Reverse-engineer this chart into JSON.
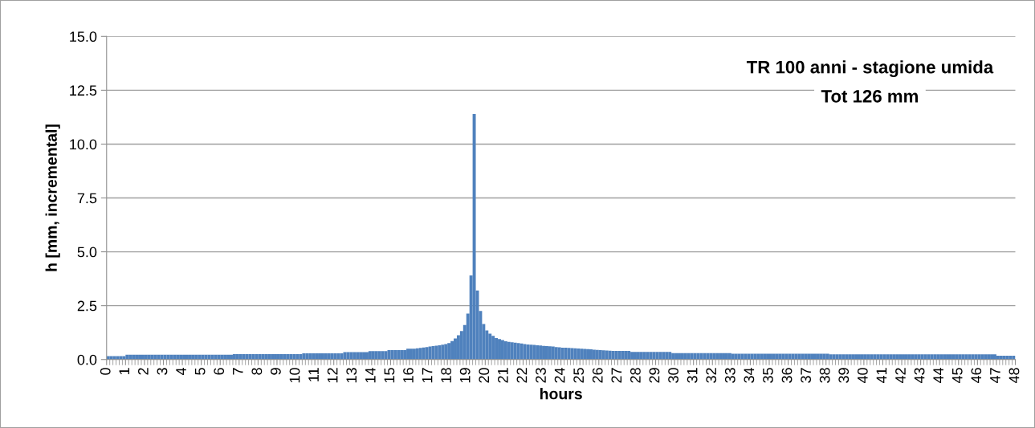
{
  "chart_data": {
    "type": "histogram",
    "title": "TR 100 anni - stagione umida",
    "subtitle": "Tot 126 mm",
    "xlabel": "hours",
    "ylabel": "h [mm, incremental]",
    "color": "#4f81bd",
    "grid": "y",
    "bins": [
      0,
      0.1667,
      0.3333,
      0.5,
      0.6667,
      0.8333,
      1,
      1.1667,
      1.3333,
      1.5,
      1.6667,
      1.8333,
      2,
      2.1667,
      2.3333,
      2.5,
      2.6667,
      2.8333,
      3,
      3.1667,
      3.3333,
      3.5,
      3.6667,
      3.8333,
      4,
      4.1667,
      4.3333,
      4.5,
      4.6667,
      4.8333,
      5,
      5.1667,
      5.3333,
      5.5,
      5.6667,
      5.8333,
      6,
      6.1667,
      6.3333,
      6.5,
      6.6667,
      6.8333,
      7,
      7.1667,
      7.3333,
      7.5,
      7.6667,
      7.8333,
      8,
      8.1667,
      8.3333,
      8.5,
      8.6667,
      8.8333,
      9,
      9.1667,
      9.3333,
      9.5,
      9.6667,
      9.8333,
      10,
      10.1667,
      10.3333,
      10.5,
      10.6667,
      10.8333,
      11,
      11.1667,
      11.3333,
      11.5,
      11.6667,
      11.8333,
      12,
      12.1667,
      12.3333,
      12.5,
      12.6667,
      12.8333,
      13,
      13.1667,
      13.3333,
      13.5,
      13.6667,
      13.8333,
      14,
      14.1667,
      14.3333,
      14.5,
      14.6667,
      14.8333,
      15,
      15.1667,
      15.3333,
      15.5,
      15.6667,
      15.8333,
      16,
      16.1667,
      16.3333,
      16.5,
      16.6667,
      16.8333,
      17,
      17.1667,
      17.3333,
      17.5,
      17.6667,
      17.8333,
      18,
      18.1667,
      18.3333,
      18.5,
      18.6667,
      18.8333,
      19,
      19.1667,
      19.3333,
      19.5,
      19.6667,
      19.8333,
      20,
      20.1667,
      20.3333,
      20.5,
      20.6667,
      20.8333,
      21,
      21.1667,
      21.3333,
      21.5,
      21.6667,
      21.8333,
      22,
      22.1667,
      22.3333,
      22.5,
      22.6667,
      22.8333,
      23,
      23.1667,
      23.3333,
      23.5,
      23.6667,
      23.8333,
      24,
      24.1667,
      24.3333,
      24.5,
      24.6667,
      24.8333,
      25,
      25.1667,
      25.3333,
      25.5,
      25.6667,
      25.8333,
      26,
      26.1667,
      26.3333,
      26.5,
      26.6667,
      26.8333,
      27,
      27.1667,
      27.3333,
      27.5,
      27.6667,
      27.8333,
      28,
      28.1667,
      28.3333,
      28.5,
      28.6667,
      28.8333,
      29,
      29.1667,
      29.3333,
      29.5,
      29.6667,
      29.8333,
      30,
      30.1667,
      30.3333,
      30.5,
      30.6667,
      30.8333,
      31,
      31.1667,
      31.3333,
      31.5,
      31.6667,
      31.8333,
      32,
      32.1667,
      32.3333,
      32.5,
      32.6667,
      32.8333,
      33,
      33.1667,
      33.3333,
      33.5,
      33.6667,
      33.8333,
      34,
      34.1667,
      34.3333,
      34.5,
      34.6667,
      34.8333,
      35,
      35.1667,
      35.3333,
      35.5,
      35.6667,
      35.8333,
      36,
      36.1667,
      36.3333,
      36.5,
      36.6667,
      36.8333,
      37,
      37.1667,
      37.3333,
      37.5,
      37.6667,
      37.8333,
      38,
      38.1667,
      38.3333,
      38.5,
      38.6667,
      38.8333,
      39,
      39.1667,
      39.3333,
      39.5,
      39.6667,
      39.8333,
      40,
      40.1667,
      40.3333,
      40.5,
      40.6667,
      40.8333,
      41,
      41.1667,
      41.3333,
      41.5,
      41.6667,
      41.8333,
      42,
      42.1667,
      42.3333,
      42.5,
      42.6667,
      42.8333,
      43,
      43.1667,
      43.3333,
      43.5,
      43.6667,
      43.8333,
      44,
      44.1667,
      44.3333,
      44.5,
      44.6667,
      44.8333,
      45,
      45.1667,
      45.3333,
      45.5,
      45.6667,
      45.8333,
      46,
      46.1667,
      46.3333,
      46.5,
      46.6667,
      46.8333,
      47,
      47.1667,
      47.3333,
      47.5,
      47.6667,
      47.8333,
      48
    ],
    "values": [
      0.16,
      0.16,
      0.16,
      0.16,
      0.16,
      0.16,
      0.22,
      0.22,
      0.22,
      0.22,
      0.22,
      0.22,
      0.22,
      0.22,
      0.22,
      0.22,
      0.22,
      0.22,
      0.22,
      0.22,
      0.22,
      0.22,
      0.22,
      0.22,
      0.22,
      0.22,
      0.22,
      0.22,
      0.22,
      0.22,
      0.22,
      0.22,
      0.22,
      0.22,
      0.22,
      0.22,
      0.22,
      0.22,
      0.22,
      0.22,
      0.25,
      0.25,
      0.25,
      0.25,
      0.25,
      0.25,
      0.25,
      0.25,
      0.25,
      0.25,
      0.25,
      0.25,
      0.25,
      0.25,
      0.25,
      0.25,
      0.25,
      0.25,
      0.25,
      0.25,
      0.25,
      0.25,
      0.29,
      0.29,
      0.29,
      0.29,
      0.29,
      0.29,
      0.29,
      0.29,
      0.29,
      0.29,
      0.29,
      0.29,
      0.29,
      0.34,
      0.34,
      0.34,
      0.34,
      0.34,
      0.34,
      0.34,
      0.34,
      0.39,
      0.39,
      0.39,
      0.39,
      0.39,
      0.39,
      0.44,
      0.44,
      0.44,
      0.44,
      0.44,
      0.44,
      0.5,
      0.5,
      0.5,
      0.52,
      0.54,
      0.56,
      0.58,
      0.6,
      0.62,
      0.64,
      0.66,
      0.69,
      0.72,
      0.76,
      0.86,
      0.98,
      1.13,
      1.32,
      1.6,
      2.13,
      3.9,
      11.4,
      3.2,
      2.25,
      1.65,
      1.35,
      1.2,
      1.1,
      1.0,
      0.95,
      0.9,
      0.85,
      0.82,
      0.8,
      0.78,
      0.76,
      0.74,
      0.72,
      0.7,
      0.69,
      0.68,
      0.66,
      0.65,
      0.63,
      0.62,
      0.61,
      0.6,
      0.58,
      0.57,
      0.55,
      0.55,
      0.54,
      0.53,
      0.52,
      0.51,
      0.5,
      0.49,
      0.48,
      0.47,
      0.46,
      0.45,
      0.44,
      0.43,
      0.42,
      0.41,
      0.4,
      0.4,
      0.4,
      0.4,
      0.4,
      0.4,
      0.35,
      0.35,
      0.35,
      0.35,
      0.35,
      0.35,
      0.35,
      0.35,
      0.35,
      0.35,
      0.35,
      0.35,
      0.35,
      0.3,
      0.3,
      0.3,
      0.3,
      0.3,
      0.3,
      0.3,
      0.3,
      0.3,
      0.3,
      0.3,
      0.3,
      0.3,
      0.3,
      0.3,
      0.3,
      0.3,
      0.3,
      0.3,
      0.27,
      0.27,
      0.27,
      0.27,
      0.27,
      0.27,
      0.27,
      0.27,
      0.27,
      0.27,
      0.27,
      0.27,
      0.27,
      0.27,
      0.27,
      0.27,
      0.27,
      0.27,
      0.27,
      0.27,
      0.27,
      0.27,
      0.27,
      0.27,
      0.27,
      0.27,
      0.27,
      0.27,
      0.27,
      0.27,
      0.27,
      0.24,
      0.24,
      0.24,
      0.24,
      0.24,
      0.24,
      0.24,
      0.24,
      0.24,
      0.24,
      0.24,
      0.24,
      0.24,
      0.24,
      0.24,
      0.24,
      0.24,
      0.24,
      0.24,
      0.24,
      0.24,
      0.24,
      0.24,
      0.24,
      0.24,
      0.24,
      0.24,
      0.24,
      0.24,
      0.24,
      0.24,
      0.24,
      0.24,
      0.24,
      0.24,
      0.24,
      0.24,
      0.24,
      0.24,
      0.24,
      0.24,
      0.24,
      0.24,
      0.24,
      0.24,
      0.24,
      0.24,
      0.24,
      0.24,
      0.24,
      0.24,
      0.24,
      0.24,
      0.18,
      0.18,
      0.18,
      0.18,
      0.18,
      0.18
    ],
    "xlim": [
      0,
      48
    ],
    "xticks": [
      0,
      1,
      2,
      3,
      4,
      5,
      6,
      7,
      8,
      9,
      10,
      11,
      12,
      13,
      14,
      15,
      16,
      17,
      18,
      19,
      20,
      21,
      22,
      23,
      24,
      25,
      26,
      27,
      28,
      29,
      30,
      31,
      32,
      33,
      34,
      35,
      36,
      37,
      38,
      39,
      40,
      41,
      42,
      43,
      44,
      45,
      46,
      47,
      48
    ],
    "ylim": [
      0,
      15
    ],
    "yticks": [
      {
        "value": 0,
        "label": "0.0"
      },
      {
        "value": 2.5,
        "label": "2.5"
      },
      {
        "value": 5,
        "label": "5.0"
      },
      {
        "value": 7.5,
        "label": "7.5"
      },
      {
        "value": 10,
        "label": "10.0"
      },
      {
        "value": 12.5,
        "label": "12.5"
      },
      {
        "value": 15,
        "label": "15.0"
      }
    ]
  }
}
